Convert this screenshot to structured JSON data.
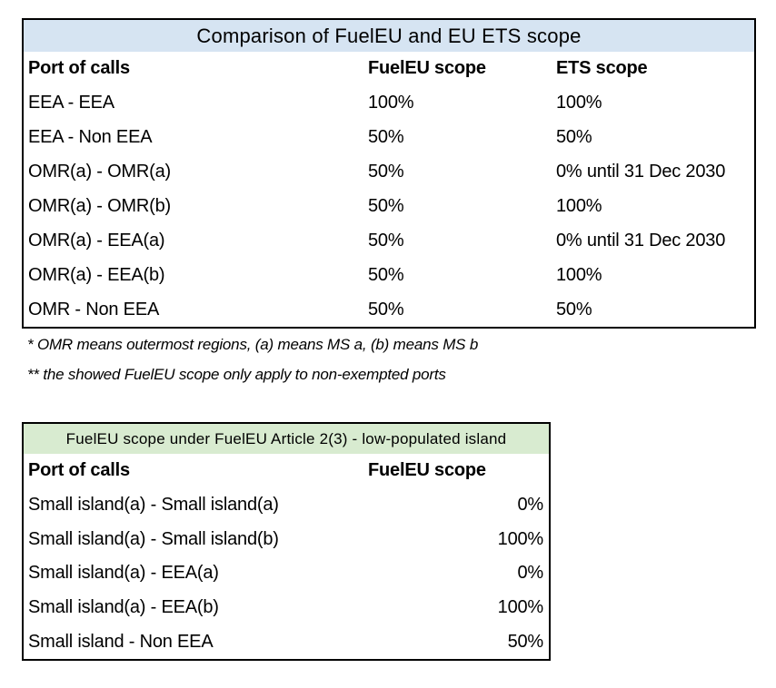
{
  "table1": {
    "title": "Comparison of FuelEU and EU ETS scope",
    "header_bg": "#d6e4f2",
    "border_color": "#000000",
    "columns": [
      "Port of calls",
      "FuelEU scope",
      "ETS scope"
    ],
    "rows": [
      [
        "EEA - EEA",
        "100%",
        "100%"
      ],
      [
        "EEA - Non EEA",
        "50%",
        "50%"
      ],
      [
        "OMR(a) - OMR(a)",
        "50%",
        "0% until 31 Dec 2030"
      ],
      [
        "OMR(a) - OMR(b)",
        "50%",
        "100%"
      ],
      [
        "OMR(a) - EEA(a)",
        "50%",
        "0% until 31 Dec 2030"
      ],
      [
        "OMR(a) - EEA(b)",
        "50%",
        "100%"
      ],
      [
        "OMR - Non EEA",
        "50%",
        "50%"
      ]
    ]
  },
  "footnotes": [
    "* OMR means outermost regions, (a) means MS a, (b) means MS b",
    "** the showed FuelEU scope only apply to non-exempted ports"
  ],
  "table2": {
    "title": "FuelEU scope under FuelEU Article 2(3) - low-populated island",
    "header_bg": "#d8ebd0",
    "border_color": "#000000",
    "columns": [
      "Port of calls",
      "FuelEU scope"
    ],
    "rows": [
      [
        "Small island(a) - Small island(a)",
        "0%"
      ],
      [
        "Small island(a) - Small island(b)",
        "100%"
      ],
      [
        "Small island(a) - EEA(a)",
        "0%"
      ],
      [
        "Small island(a) - EEA(b)",
        "100%"
      ],
      [
        "Small island - Non EEA",
        "50%"
      ]
    ]
  }
}
